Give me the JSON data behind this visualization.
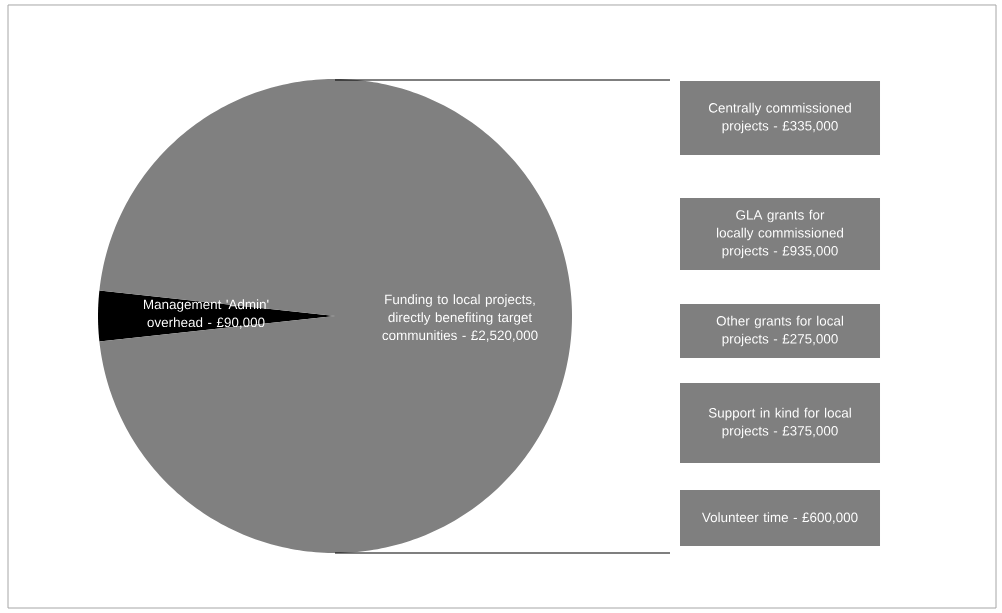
{
  "chart_data": {
    "type": "pie",
    "categories": [
      "Management 'Admin' overhead -",
      "Funding to local projects, directly benefiting target communities -"
    ],
    "value_labels": [
      "£90,000",
      "£2,520,000"
    ],
    "values": [
      90000,
      2520000
    ],
    "colors": [
      "#000000",
      "#808080"
    ],
    "annotations": [
      "Centrally commissioned projects - £335,000",
      "GLA grants for locally commissioned projects - £935,000",
      "Other grants for local projects - £275,000",
      "Support in kind for local projects  - £375,000",
      "Volunteer time - £600,000"
    ]
  }
}
